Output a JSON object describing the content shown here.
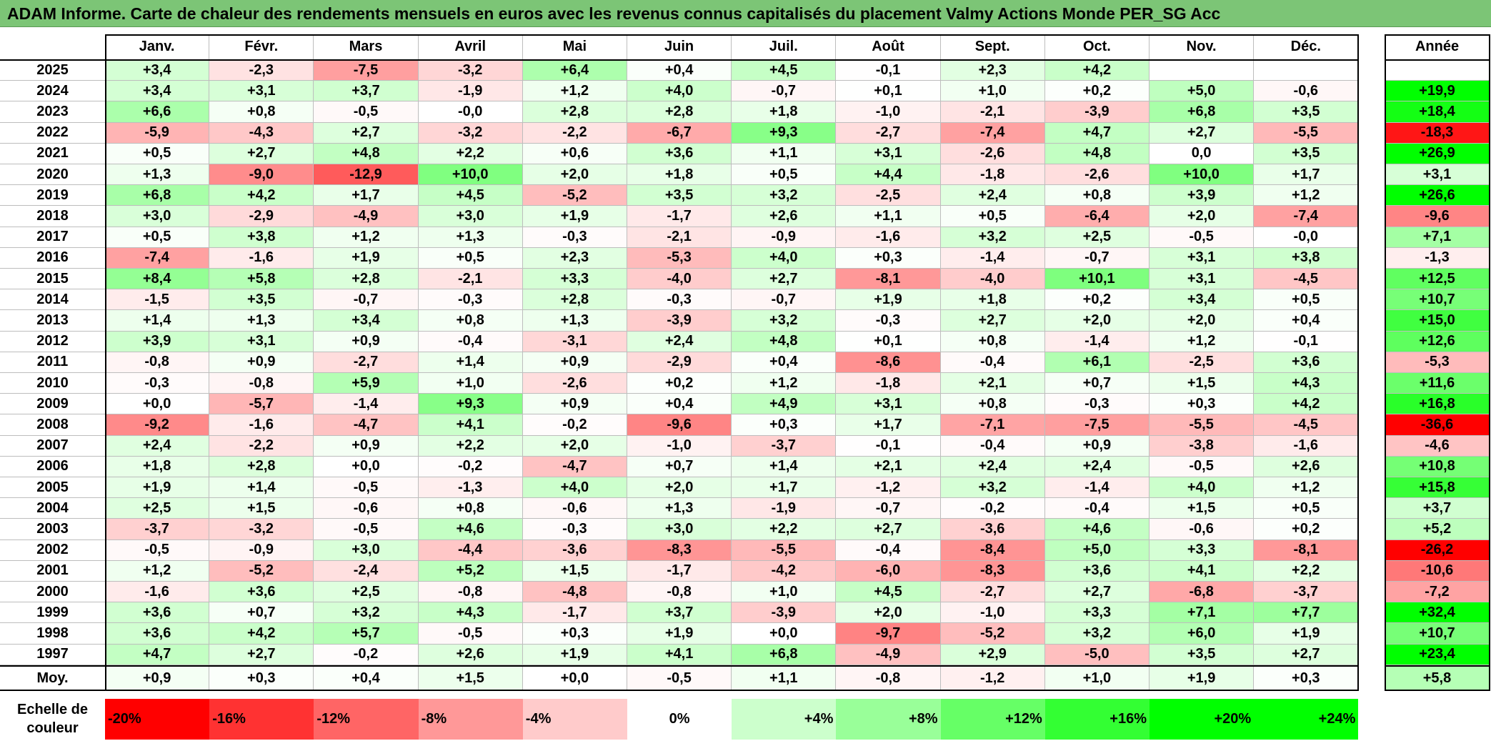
{
  "title": "ADAM Informe. Carte de chaleur des rendements mensuels en euros avec les revenus connus capitalisés du placement Valmy Actions Monde PER_SG Acc",
  "chart_data": {
    "type": "heatmap",
    "months": [
      "Janv.",
      "Févr.",
      "Mars",
      "Avril",
      "Mai",
      "Juin",
      "Juil.",
      "Août",
      "Sept.",
      "Oct.",
      "Nov.",
      "Déc."
    ],
    "annual_label": "Année",
    "rows": [
      {
        "year": "2025",
        "values": [
          "+3,4",
          "-2,3",
          "-7,5",
          "-3,2",
          "+6,4",
          "+0,4",
          "+4,5",
          "-0,1",
          "+2,3",
          "+4,2",
          "",
          ""
        ],
        "annual": ""
      },
      {
        "year": "2024",
        "values": [
          "+3,4",
          "+3,1",
          "+3,7",
          "-1,9",
          "+1,2",
          "+4,0",
          "-0,7",
          "+0,1",
          "+1,0",
          "+0,2",
          "+5,0",
          "-0,6"
        ],
        "annual": "+19,9"
      },
      {
        "year": "2023",
        "values": [
          "+6,6",
          "+0,8",
          "-0,5",
          "-0,0",
          "+2,8",
          "+2,8",
          "+1,8",
          "-1,0",
          "-2,1",
          "-3,9",
          "+6,8",
          "+3,5"
        ],
        "annual": "+18,4"
      },
      {
        "year": "2022",
        "values": [
          "-5,9",
          "-4,3",
          "+2,7",
          "-3,2",
          "-2,2",
          "-6,7",
          "+9,3",
          "-2,7",
          "-7,4",
          "+4,7",
          "+2,7",
          "-5,5"
        ],
        "annual": "-18,3"
      },
      {
        "year": "2021",
        "values": [
          "+0,5",
          "+2,7",
          "+4,8",
          "+2,2",
          "+0,6",
          "+3,6",
          "+1,1",
          "+3,1",
          "-2,6",
          "+4,8",
          "0,0",
          "+3,5"
        ],
        "annual": "+26,9"
      },
      {
        "year": "2020",
        "values": [
          "+1,3",
          "-9,0",
          "-12,9",
          "+10,0",
          "+2,0",
          "+1,8",
          "+0,5",
          "+4,4",
          "-1,8",
          "-2,6",
          "+10,0",
          "+1,7"
        ],
        "annual": "+3,1"
      },
      {
        "year": "2019",
        "values": [
          "+6,8",
          "+4,2",
          "+1,7",
          "+4,5",
          "-5,2",
          "+3,5",
          "+3,2",
          "-2,5",
          "+2,4",
          "+0,8",
          "+3,9",
          "+1,2"
        ],
        "annual": "+26,6"
      },
      {
        "year": "2018",
        "values": [
          "+3,0",
          "-2,9",
          "-4,9",
          "+3,0",
          "+1,9",
          "-1,7",
          "+2,6",
          "+1,1",
          "+0,5",
          "-6,4",
          "+2,0",
          "-7,4"
        ],
        "annual": "-9,6"
      },
      {
        "year": "2017",
        "values": [
          "+0,5",
          "+3,8",
          "+1,2",
          "+1,3",
          "-0,3",
          "-2,1",
          "-0,9",
          "-1,6",
          "+3,2",
          "+2,5",
          "-0,5",
          "-0,0"
        ],
        "annual": "+7,1"
      },
      {
        "year": "2016",
        "values": [
          "-7,4",
          "-1,6",
          "+1,9",
          "+0,5",
          "+2,3",
          "-5,3",
          "+4,0",
          "+0,3",
          "-1,4",
          "-0,7",
          "+3,1",
          "+3,8"
        ],
        "annual": "-1,3"
      },
      {
        "year": "2015",
        "values": [
          "+8,4",
          "+5,8",
          "+2,8",
          "-2,1",
          "+3,3",
          "-4,0",
          "+2,7",
          "-8,1",
          "-4,0",
          "+10,1",
          "+3,1",
          "-4,5"
        ],
        "annual": "+12,5"
      },
      {
        "year": "2014",
        "values": [
          "-1,5",
          "+3,5",
          "-0,7",
          "-0,3",
          "+2,8",
          "-0,3",
          "-0,7",
          "+1,9",
          "+1,8",
          "+0,2",
          "+3,4",
          "+0,5"
        ],
        "annual": "+10,7"
      },
      {
        "year": "2013",
        "values": [
          "+1,4",
          "+1,3",
          "+3,4",
          "+0,8",
          "+1,3",
          "-3,9",
          "+3,2",
          "-0,3",
          "+2,7",
          "+2,0",
          "+2,0",
          "+0,4"
        ],
        "annual": "+15,0"
      },
      {
        "year": "2012",
        "values": [
          "+3,9",
          "+3,1",
          "+0,9",
          "-0,4",
          "-3,1",
          "+2,4",
          "+4,8",
          "+0,1",
          "+0,8",
          "-1,4",
          "+1,2",
          "-0,1"
        ],
        "annual": "+12,6"
      },
      {
        "year": "2011",
        "values": [
          "-0,8",
          "+0,9",
          "-2,7",
          "+1,4",
          "+0,9",
          "-2,9",
          "+0,4",
          "-8,6",
          "-0,4",
          "+6,1",
          "-2,5",
          "+3,6"
        ],
        "annual": "-5,3"
      },
      {
        "year": "2010",
        "values": [
          "-0,3",
          "-0,8",
          "+5,9",
          "+1,0",
          "-2,6",
          "+0,2",
          "+1,2",
          "-1,8",
          "+2,1",
          "+0,7",
          "+1,5",
          "+4,3"
        ],
        "annual": "+11,6"
      },
      {
        "year": "2009",
        "values": [
          "+0,0",
          "-5,7",
          "-1,4",
          "+9,3",
          "+0,9",
          "+0,4",
          "+4,9",
          "+3,1",
          "+0,8",
          "-0,3",
          "+0,3",
          "+4,2"
        ],
        "annual": "+16,8"
      },
      {
        "year": "2008",
        "values": [
          "-9,2",
          "-1,6",
          "-4,7",
          "+4,1",
          "-0,2",
          "-9,6",
          "+0,3",
          "+1,7",
          "-7,1",
          "-7,5",
          "-5,5",
          "-4,5"
        ],
        "annual": "-36,6"
      },
      {
        "year": "2007",
        "values": [
          "+2,4",
          "-2,2",
          "+0,9",
          "+2,2",
          "+2,0",
          "-1,0",
          "-3,7",
          "-0,1",
          "-0,4",
          "+0,9",
          "-3,8",
          "-1,6"
        ],
        "annual": "-4,6"
      },
      {
        "year": "2006",
        "values": [
          "+1,8",
          "+2,8",
          "+0,0",
          "-0,2",
          "-4,7",
          "+0,7",
          "+1,4",
          "+2,1",
          "+2,4",
          "+2,4",
          "-0,5",
          "+2,6"
        ],
        "annual": "+10,8"
      },
      {
        "year": "2005",
        "values": [
          "+1,9",
          "+1,4",
          "-0,5",
          "-1,3",
          "+4,0",
          "+2,0",
          "+1,7",
          "-1,2",
          "+3,2",
          "-1,4",
          "+4,0",
          "+1,2"
        ],
        "annual": "+15,8"
      },
      {
        "year": "2004",
        "values": [
          "+2,5",
          "+1,5",
          "-0,6",
          "+0,8",
          "-0,6",
          "+1,3",
          "-1,9",
          "-0,7",
          "-0,2",
          "-0,4",
          "+1,5",
          "+0,5"
        ],
        "annual": "+3,7"
      },
      {
        "year": "2003",
        "values": [
          "-3,7",
          "-3,2",
          "-0,5",
          "+4,6",
          "-0,3",
          "+3,0",
          "+2,2",
          "+2,7",
          "-3,6",
          "+4,6",
          "-0,6",
          "+0,2"
        ],
        "annual": "+5,2"
      },
      {
        "year": "2002",
        "values": [
          "-0,5",
          "-0,9",
          "+3,0",
          "-4,4",
          "-3,6",
          "-8,3",
          "-5,5",
          "-0,4",
          "-8,4",
          "+5,0",
          "+3,3",
          "-8,1"
        ],
        "annual": "-26,2"
      },
      {
        "year": "2001",
        "values": [
          "+1,2",
          "-5,2",
          "-2,4",
          "+5,2",
          "+1,5",
          "-1,7",
          "-4,2",
          "-6,0",
          "-8,3",
          "+3,6",
          "+4,1",
          "+2,2"
        ],
        "annual": "-10,6"
      },
      {
        "year": "2000",
        "values": [
          "-1,6",
          "+3,6",
          "+2,5",
          "-0,8",
          "-4,8",
          "-0,8",
          "+1,0",
          "+4,5",
          "-2,7",
          "+2,7",
          "-6,8",
          "-3,7"
        ],
        "annual": "-7,2"
      },
      {
        "year": "1999",
        "values": [
          "+3,6",
          "+0,7",
          "+3,2",
          "+4,3",
          "-1,7",
          "+3,7",
          "-3,9",
          "+2,0",
          "-1,0",
          "+3,3",
          "+7,1",
          "+7,7"
        ],
        "annual": "+32,4"
      },
      {
        "year": "1998",
        "values": [
          "+3,6",
          "+4,2",
          "+5,7",
          "-0,5",
          "+0,3",
          "+1,9",
          "+0,0",
          "-9,7",
          "-5,2",
          "+3,2",
          "+6,0",
          "+1,9"
        ],
        "annual": "+10,7"
      },
      {
        "year": "1997",
        "values": [
          "+4,7",
          "+2,7",
          "-0,2",
          "+2,6",
          "+1,9",
          "+4,1",
          "+6,8",
          "-4,9",
          "+2,9",
          "-5,0",
          "+3,5",
          "+2,7"
        ],
        "annual": "+23,4"
      }
    ],
    "average": {
      "label": "Moy.",
      "values": [
        "+0,9",
        "+0,3",
        "+0,4",
        "+1,5",
        "+0,0",
        "-0,5",
        "+1,1",
        "-0,8",
        "-1,2",
        "+1,0",
        "+1,9",
        "+0,3"
      ],
      "annual": "+5,8"
    },
    "legend": {
      "label": "Echelle de couleur",
      "items": [
        {
          "text": "-20%",
          "color": "#ff0000",
          "align": "left"
        },
        {
          "text": "-16%",
          "color": "#ff3232",
          "align": "left"
        },
        {
          "text": "-12%",
          "color": "#ff6565",
          "align": "left"
        },
        {
          "text": "-8%",
          "color": "#ff9898",
          "align": "left"
        },
        {
          "text": "-4%",
          "color": "#ffcbcb",
          "align": "left"
        },
        {
          "text": "0%",
          "color": "#ffffff",
          "align": "center"
        },
        {
          "text": "+4%",
          "color": "#ccffcc",
          "align": "right"
        },
        {
          "text": "+8%",
          "color": "#99ff99",
          "align": "right"
        },
        {
          "text": "+12%",
          "color": "#66ff66",
          "align": "right"
        },
        {
          "text": "+16%",
          "color": "#33ff33",
          "align": "right"
        },
        {
          "text": "+20%",
          "color": "#00ff00",
          "align": "right"
        },
        {
          "text": "+24%",
          "color": "#00ff00",
          "align": "right"
        }
      ]
    },
    "scale": {
      "min": -20,
      "max": 24,
      "negative_color": "#ff0000",
      "positive_color": "#00ff00",
      "zero_color": "#ffffff"
    }
  }
}
